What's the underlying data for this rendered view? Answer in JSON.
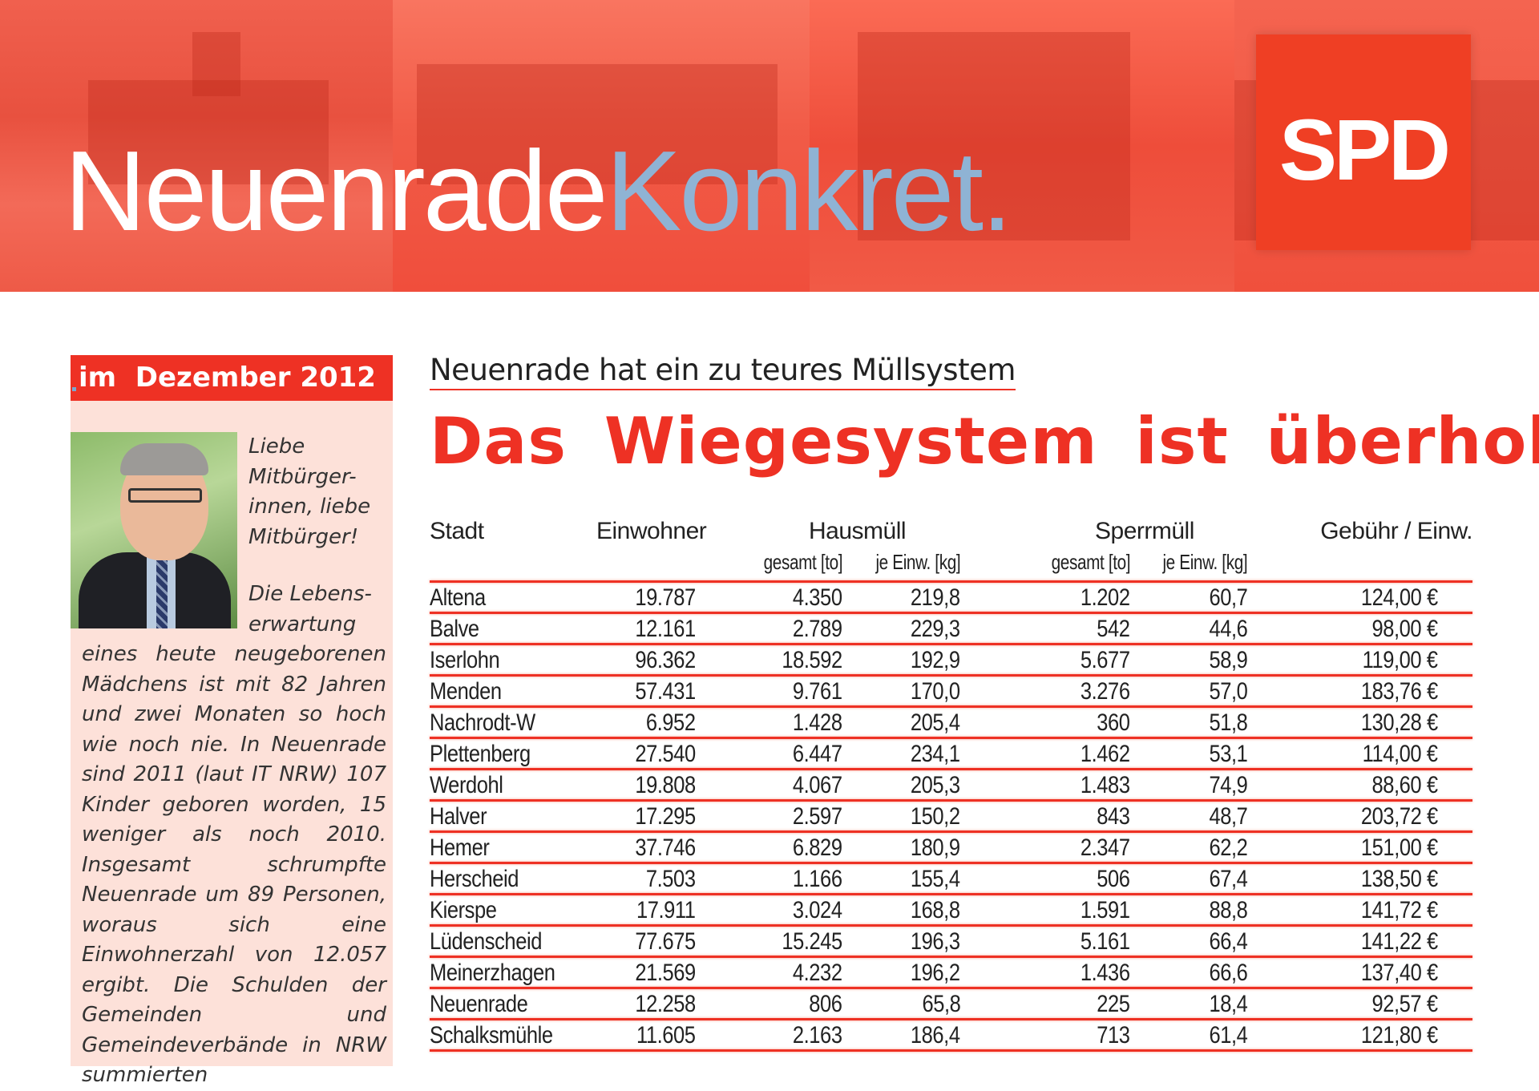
{
  "header": {
    "title_part1": "Neuenrade",
    "title_part2": "Konkret.",
    "logo": "SPD",
    "colors": {
      "brand_red": "#ee3124",
      "accent_blue": "#8fb3d4"
    }
  },
  "sidebar": {
    "date_label": "im  Dezember 2012",
    "greeting": "Liebe Mitbürger-innen, liebe Mitbürger!",
    "body_intro": "Die Lebens-erwartung",
    "body": "eines heute neugeborenen Mädchens ist mit 82 Jahren und zwei Monaten so hoch wie noch nie. In Neuenrade sind 2011 (laut IT NRW) 107 Kinder geboren worden, 15 weniger als noch 2010. Insgesamt schrumpfte Neuenrade um 89 Personen, woraus sich eine Einwohnerzahl von 12.057 ergibt. Die Schulden der Gemeinden und Gemeindeverbände in NRW summierten"
  },
  "article": {
    "subtitle": "Neuenrade hat ein zu teures Müllsystem",
    "headline": "Das Wiegesystem ist überholt!"
  },
  "table": {
    "headers": {
      "stadt": "Stadt",
      "einwohner": "Einwohner",
      "hausmuell": "Hausmüll",
      "sperrmuell": "Sperrmüll",
      "gebuehr": "Gebühr / Einw.",
      "h_gesamt": "gesamt [to]",
      "h_je": "je Einw. [kg]",
      "s_gesamt": "gesamt [to]",
      "s_je": "je Einw. [kg]"
    },
    "rows": [
      [
        "Altena",
        "19.787",
        "4.350",
        "219,8",
        "1.202",
        "60,7",
        "124,00 €"
      ],
      [
        "Balve",
        "12.161",
        "2.789",
        "229,3",
        "542",
        "44,6",
        "98,00 €"
      ],
      [
        "Iserlohn",
        "96.362",
        "18.592",
        "192,9",
        "5.677",
        "58,9",
        "119,00 €"
      ],
      [
        "Menden",
        "57.431",
        "9.761",
        "170,0",
        "3.276",
        "57,0",
        "183,76 €"
      ],
      [
        "Nachrodt-W",
        "6.952",
        "1.428",
        "205,4",
        "360",
        "51,8",
        "130,28 €"
      ],
      [
        "Plettenberg",
        "27.540",
        "6.447",
        "234,1",
        "1.462",
        "53,1",
        "114,00 €"
      ],
      [
        "Werdohl",
        "19.808",
        "4.067",
        "205,3",
        "1.483",
        "74,9",
        "88,60 €"
      ],
      [
        "Halver",
        "17.295",
        "2.597",
        "150,2",
        "843",
        "48,7",
        "203,72 €"
      ],
      [
        "Hemer",
        "37.746",
        "6.829",
        "180,9",
        "2.347",
        "62,2",
        "151,00 €"
      ],
      [
        "Herscheid",
        "7.503",
        "1.166",
        "155,4",
        "506",
        "67,4",
        "138,50 €"
      ],
      [
        "Kierspe",
        "17.911",
        "3.024",
        "168,8",
        "1.591",
        "88,8",
        "141,72 €"
      ],
      [
        "Lüdenscheid",
        "77.675",
        "15.245",
        "196,3",
        "5.161",
        "66,4",
        "141,22 €"
      ],
      [
        "Meinerzhagen",
        "21.569",
        "4.232",
        "196,2",
        "1.436",
        "66,6",
        "137,40 €"
      ],
      [
        "Neuenrade",
        "12.258",
        "806",
        "65,8",
        "225",
        "18,4",
        "92,57 €"
      ],
      [
        "Schalksmühle",
        "11.605",
        "2.163",
        "186,4",
        "713",
        "61,4",
        "121,80 €"
      ]
    ]
  }
}
